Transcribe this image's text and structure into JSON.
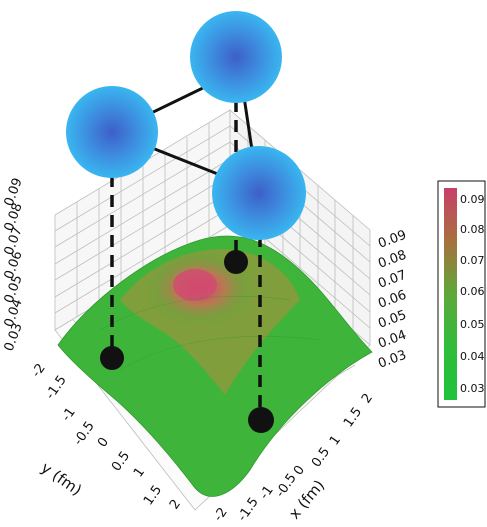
{
  "figure": {
    "x_axis": {
      "label": "x (fm)",
      "ticks": [
        "-2",
        "-1.5",
        "-1",
        "-0.5",
        "0",
        "0.5",
        "1",
        "1.5",
        "2"
      ]
    },
    "y_axis": {
      "label": "y (fm)",
      "ticks": [
        "-2",
        "-1.5",
        "-1",
        "-0.5",
        "0",
        "0.5",
        "1",
        "1.5",
        "2"
      ]
    },
    "z_axis_left": {
      "ticks": [
        "0.09",
        "0.08",
        "0.07",
        "0.06",
        "0.05",
        "0.04",
        "0.03"
      ]
    },
    "z_axis_right": {
      "ticks": [
        "0.09",
        "0.08",
        "0.07",
        "0.06",
        "0.05",
        "0.04",
        "0.03"
      ]
    },
    "colorbar": {
      "labels": [
        "0.09",
        "0.08",
        "0.07",
        "0.06",
        "0.05",
        "0.04",
        "0.03"
      ],
      "colors": [
        "#c8406a",
        "#b36a4a",
        "#8f8a3a",
        "#5aa83a",
        "#3fba3a",
        "#2fc03a",
        "#22c23a"
      ]
    },
    "nodes": [
      {
        "name": "sphere-top",
        "color": "#3aa6e8"
      },
      {
        "name": "sphere-left",
        "color": "#3aa6e8"
      },
      {
        "name": "sphere-right",
        "color": "#3aa6e8"
      }
    ]
  }
}
